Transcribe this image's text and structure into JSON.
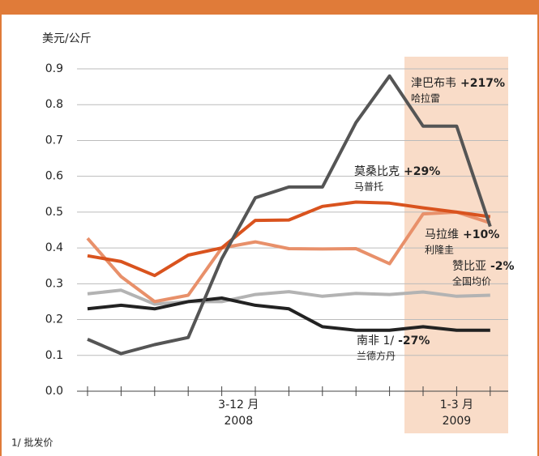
{
  "chart_data": {
    "type": "line",
    "y_label": "美元/公斤",
    "categories": [
      null,
      null,
      null,
      null,
      null,
      null,
      null,
      null,
      null,
      null,
      null,
      null,
      null
    ],
    "groups": [
      {
        "label": "3-12 月",
        "sublabel": "2008",
        "start": 0,
        "end": 9
      },
      {
        "label": "1-3 月",
        "sublabel": "2009",
        "start": 10,
        "end": 12,
        "highlight": "#f9dcc8"
      }
    ],
    "ylim": [
      0,
      0.9
    ],
    "yticks": [
      {
        "value": 0,
        "label": "0.0"
      },
      0.1,
      0.2,
      0.3,
      0.4,
      0.5,
      0.6,
      0.7,
      0.8,
      0.9
    ],
    "grid": true,
    "series": [
      {
        "name": "津巴布韦",
        "change": "+217%",
        "market": "哈拉雷",
        "color": "#555555",
        "values": [
          0.145,
          0.105,
          0.13,
          0.15,
          0.37,
          0.54,
          0.57,
          0.57,
          0.75,
          0.88,
          0.74,
          0.74,
          0.46
        ]
      },
      {
        "name": "莫桑比克",
        "change": "+29%",
        "market": "马普托",
        "color": "#d9531e",
        "values": [
          0.378,
          0.362,
          0.323,
          0.38,
          0.4,
          0.477,
          0.478,
          0.516,
          0.528,
          0.525,
          0.512,
          0.5,
          0.487
        ]
      },
      {
        "name": "马拉维",
        "change": "+10%",
        "market": "利隆圭",
        "color": "#e8906a",
        "values": [
          0.427,
          0.32,
          0.25,
          0.268,
          0.4,
          0.417,
          0.398,
          0.397,
          0.398,
          0.356,
          0.495,
          0.5,
          0.47
        ]
      },
      {
        "name": "赞比亚",
        "change": "-2%",
        "market": "全国均价",
        "color": "#b3b3b3",
        "values": [
          0.272,
          0.282,
          0.243,
          0.25,
          0.25,
          0.27,
          0.278,
          0.265,
          0.273,
          0.27,
          0.277,
          0.265,
          0.268
        ]
      },
      {
        "name": "南非 1/",
        "change": "-27%",
        "market": "兰德方丹",
        "color": "#222222",
        "values": [
          0.23,
          0.24,
          0.23,
          0.25,
          0.26,
          0.24,
          0.23,
          0.18,
          0.17,
          0.17,
          0.18,
          0.17,
          0.17
        ]
      }
    ],
    "footnote": "1/ 批发价"
  }
}
